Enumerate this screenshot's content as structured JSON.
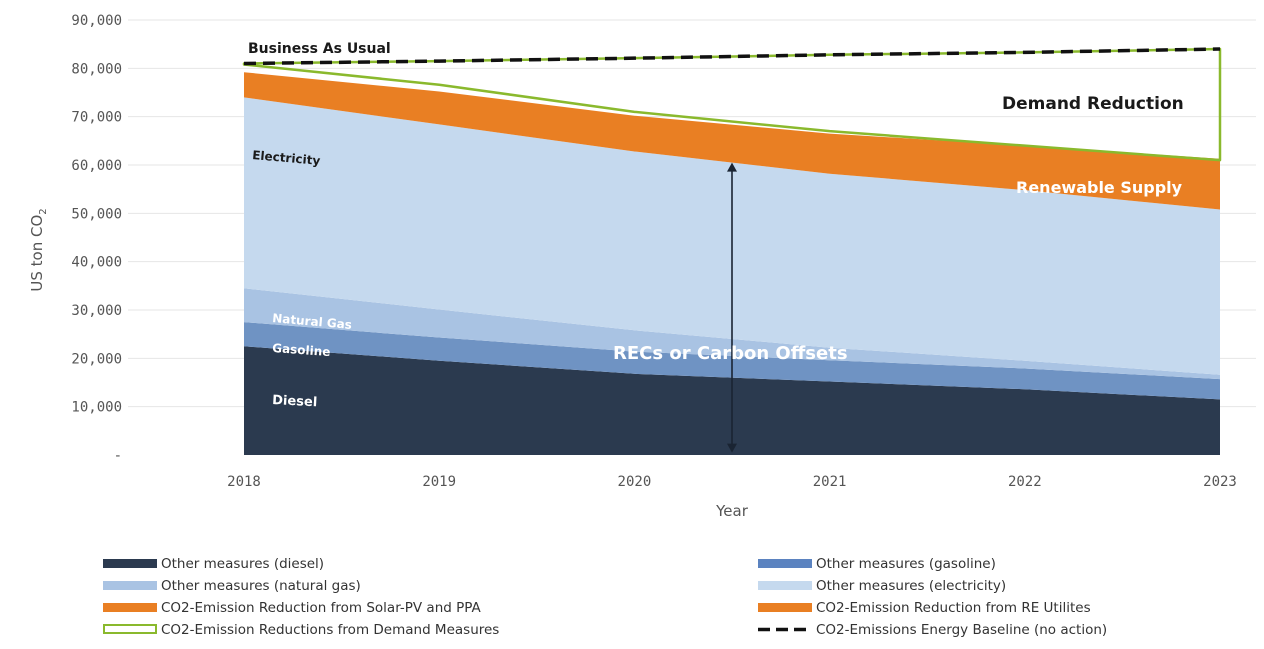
{
  "chart_data": {
    "type": "area",
    "xlabel": "Year",
    "ylabel_main": "US ton CO",
    "ylabel_sub": "2",
    "x": [
      2018,
      2019,
      2020,
      2021,
      2022,
      2023
    ],
    "y_ticks": [
      {
        "value": 0,
        "label": "-"
      },
      {
        "value": 10000,
        "label": "10,000"
      },
      {
        "value": 20000,
        "label": "20,000"
      },
      {
        "value": 30000,
        "label": "30,000"
      },
      {
        "value": 40000,
        "label": "40,000"
      },
      {
        "value": 50000,
        "label": "50,000"
      },
      {
        "value": 60000,
        "label": "60,000"
      },
      {
        "value": 70000,
        "label": "70,000"
      },
      {
        "value": 80000,
        "label": "80,000"
      },
      {
        "value": 90000,
        "label": "90,000"
      }
    ],
    "ylim": [
      0,
      90000
    ],
    "stacked_series": [
      {
        "key": "diesel",
        "color": "#2b3a4f",
        "values": [
          22500,
          19500,
          16800,
          15200,
          13600,
          11500
        ]
      },
      {
        "key": "gasoline",
        "color": "#6f93c3",
        "values": [
          5000,
          4800,
          4600,
          4400,
          4300,
          4200
        ]
      },
      {
        "key": "natural_gas",
        "color": "#a9c3e3",
        "values": [
          7000,
          5800,
          4400,
          2600,
          1600,
          900
        ]
      },
      {
        "key": "electricity",
        "color": "#c5d9ee",
        "values": [
          39500,
          38300,
          37000,
          36000,
          35300,
          34200
        ]
      },
      {
        "key": "renewable",
        "color": "#e97f23",
        "values": [
          5200,
          6800,
          7400,
          8300,
          9200,
          10500
        ]
      }
    ],
    "demand_top": [
      80800,
      76600,
      71000,
      67000,
      64000,
      61000
    ],
    "demand_color": "#8ab92d",
    "baseline": [
      81000,
      81500,
      82100,
      82800,
      83300,
      84000
    ],
    "arrow": {
      "x": 2020.5,
      "y_from": 500,
      "y_to": 60500
    },
    "annotations": {
      "business_as_usual": "Business As Usual",
      "demand_reduction": "Demand Reduction",
      "renewable_supply": "Renewable Supply",
      "electricity": "Electricity",
      "natural_gas": "Natural Gas",
      "gasoline": "Gasoline",
      "diesel": "Diesel",
      "recs": "RECs or Carbon Offsets"
    },
    "legend": [
      {
        "label": "Other measures  (diesel)",
        "style": "fill",
        "color": "#2b3a4f"
      },
      {
        "label": "Other measures (gasoline)",
        "style": "fill",
        "color": "#5b83c0"
      },
      {
        "label": "Other measures (natural gas)",
        "style": "fill",
        "color": "#a9c3e3"
      },
      {
        "label": "Other measures (electricity)",
        "style": "fill",
        "color": "#c5d9ee"
      },
      {
        "label": "CO2-Emission Reduction from Solar-PV and PPA",
        "style": "fill",
        "color": "#e97f23"
      },
      {
        "label": "CO2-Emission Reduction from RE Utilites",
        "style": "fill",
        "color": "#e97f23"
      },
      {
        "label": "CO2-Emission Reductions from Demand Measures",
        "style": "outline",
        "color": "#8ab92d"
      },
      {
        "label": "CO2-Emissions Energy Baseline (no action)",
        "style": "dash",
        "color": "#111111"
      }
    ]
  }
}
